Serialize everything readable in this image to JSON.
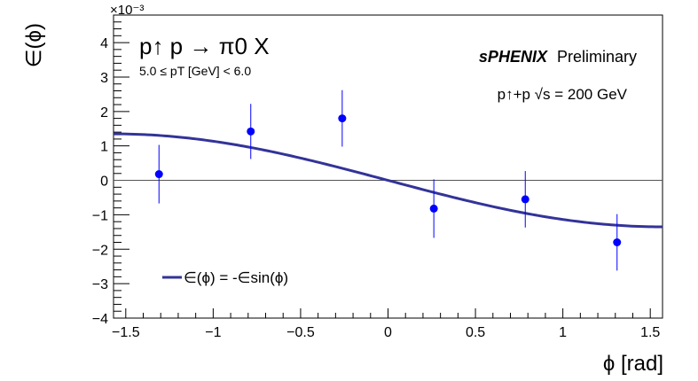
{
  "chart_data": {
    "type": "scatter",
    "title": "p↑ p → π0 X",
    "kinematics": "5.0 ≤ pT [GeV] < 6.0",
    "collaboration": "sPHENIX",
    "status": "Preliminary",
    "collision": "p↑+p  √s = 200 GeV",
    "xlabel": "ϕ [rad]",
    "ylabel": "∈(ϕ)",
    "y_multiplier": "×10⁻³",
    "xlim": [
      -1.57,
      1.57
    ],
    "ylim": [
      -4,
      4.8
    ],
    "x_ticks": [
      {
        "value": -1.5,
        "label": "−1.5"
      },
      {
        "value": -1.0,
        "label": "−1"
      },
      {
        "value": -0.5,
        "label": "−0.5"
      },
      {
        "value": 0.0,
        "label": "0"
      },
      {
        "value": 0.5,
        "label": "0.5"
      },
      {
        "value": 1.0,
        "label": "1"
      },
      {
        "value": 1.5,
        "label": "1.5"
      }
    ],
    "y_ticks": [
      {
        "value": -4,
        "label": "−4"
      },
      {
        "value": -3,
        "label": "−3"
      },
      {
        "value": -2,
        "label": "−2"
      },
      {
        "value": -1,
        "label": "−1"
      },
      {
        "value": 0,
        "label": "0"
      },
      {
        "value": 1,
        "label": "1"
      },
      {
        "value": 2,
        "label": "2"
      },
      {
        "value": 3,
        "label": "3"
      },
      {
        "value": 4,
        "label": "4"
      }
    ],
    "series": [
      {
        "kind": "points",
        "color": "#0000ff",
        "x": [
          -1.31,
          -0.785,
          -0.262,
          0.262,
          0.785,
          1.31
        ],
        "y": [
          0.18,
          1.42,
          1.8,
          -0.82,
          -0.55,
          -1.8
        ],
        "yerr": [
          0.85,
          0.8,
          0.82,
          0.85,
          0.82,
          0.82
        ]
      },
      {
        "kind": "fit",
        "name": "∈(ϕ) = -∈sin(ϕ)",
        "color": "#333399",
        "function": "sin",
        "amplitude": -1.35,
        "x_range": [
          -1.57,
          1.57
        ]
      }
    ],
    "grid": false,
    "legend_position": "bottom-left"
  }
}
